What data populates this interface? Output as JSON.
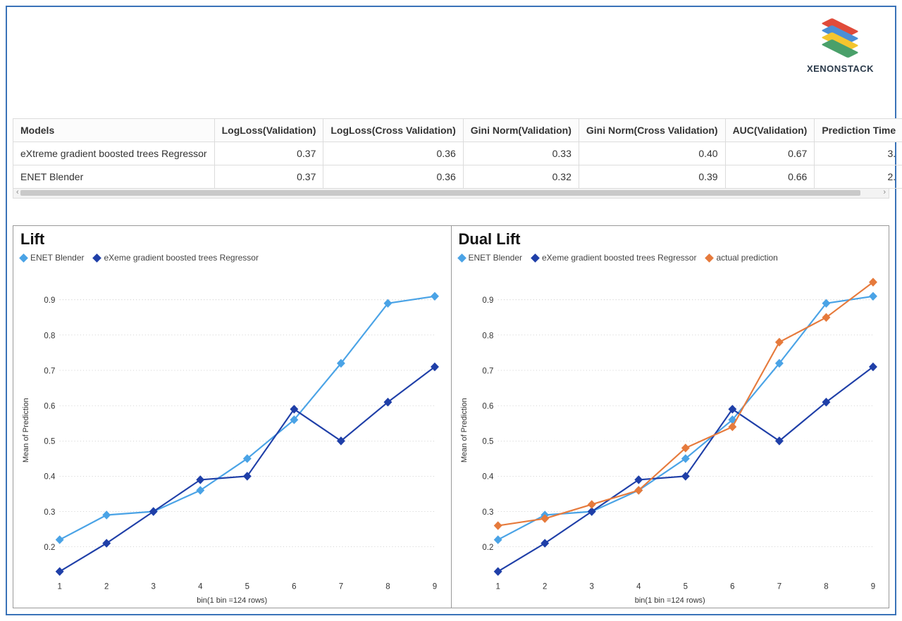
{
  "brand": {
    "name": "XENONSTACK",
    "layer_colors": [
      "#e04b3a",
      "#4a8fd6",
      "#f4c52e",
      "#4aa06a"
    ]
  },
  "table": {
    "columns": [
      "Models",
      "LogLoss(Validation)",
      "LogLoss(Cross Validation)",
      "Gini Norm(Validation)",
      "Gini Norm(Cross Validation)",
      "AUC(Validation)",
      "Prediction Time"
    ],
    "rows": [
      {
        "model": "eXtreme gradient boosted trees Regressor",
        "cells": [
          "0.37",
          "0.36",
          "0.33",
          "0.40",
          "0.67",
          "3."
        ]
      },
      {
        "model": "ENET Blender",
        "cells": [
          "0.37",
          "0.36",
          "0.32",
          "0.39",
          "0.66",
          "2."
        ]
      }
    ]
  },
  "axis": {
    "y_label": "Mean of Prediction",
    "x_label": "bin(1 bin =124 rows)",
    "x_ticks": [
      "1",
      "2",
      "3",
      "4",
      "5",
      "6",
      "7",
      "8",
      "9"
    ],
    "y_ticks": [
      "0.2",
      "0.3",
      "0.4",
      "0.5",
      "0.6",
      "0.7",
      "0.8",
      "0.9"
    ],
    "ylim": [
      0.12,
      0.98
    ],
    "tick_fontsize": 11,
    "label_fontsize": 11,
    "grid_color": "#000000",
    "grid_dash": "1,3"
  },
  "style": {
    "line_width": 2,
    "marker_size": 5,
    "marker_shape": "diamond",
    "background": "#ffffff",
    "panel_border": "#999999"
  },
  "series_colors": {
    "enet": "#4aa3e6",
    "xgb": "#1f3fa8",
    "actual": "#e67a3c"
  },
  "lift_chart": {
    "title": "Lift",
    "type": "line",
    "legend": [
      {
        "key": "enet",
        "label": "ENET Blender"
      },
      {
        "key": "xgb",
        "label": "eXeme gradient boosted trees Regressor"
      }
    ],
    "series": {
      "enet": [
        0.22,
        0.29,
        0.3,
        0.36,
        0.45,
        0.56,
        0.72,
        0.89,
        0.91
      ],
      "xgb": [
        0.13,
        0.21,
        0.3,
        0.39,
        0.4,
        0.59,
        0.5,
        0.61,
        0.71
      ]
    }
  },
  "dual_lift_chart": {
    "title": "Dual Lift",
    "type": "line",
    "legend": [
      {
        "key": "enet",
        "label": "ENET Blender"
      },
      {
        "key": "xgb",
        "label": "eXeme gradient boosted trees Regressor"
      },
      {
        "key": "actual",
        "label": "actual prediction"
      }
    ],
    "series": {
      "enet": [
        0.22,
        0.29,
        0.3,
        0.36,
        0.45,
        0.56,
        0.72,
        0.89,
        0.91
      ],
      "xgb": [
        0.13,
        0.21,
        0.3,
        0.39,
        0.4,
        0.59,
        0.5,
        0.61,
        0.71
      ],
      "actual": [
        0.26,
        0.28,
        0.32,
        0.36,
        0.48,
        0.54,
        0.78,
        0.85,
        0.95
      ]
    }
  }
}
